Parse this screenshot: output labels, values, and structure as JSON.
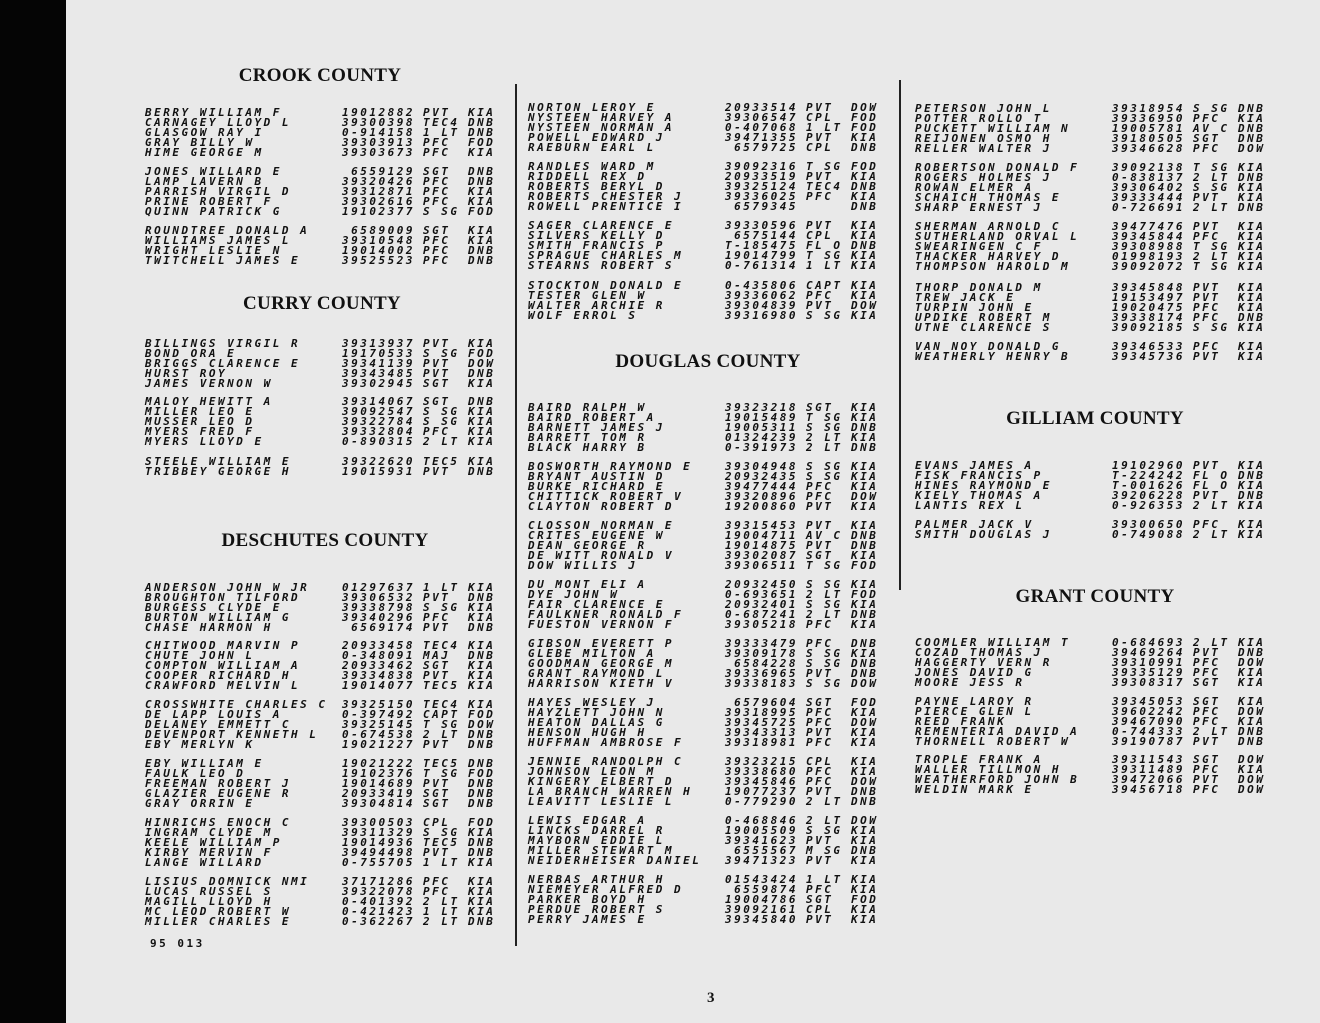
{
  "counties": {
    "crook": "CROOK COUNTY",
    "curry": "CURRY COUNTY",
    "deschutes": "DESCHUTES COUNTY",
    "douglas": "DOUGLAS COUNTY",
    "gilliam": "GILLIAM COUNTY",
    "grant": "GRANT COUNTY"
  },
  "footer_code": "95 013",
  "page_number": "3",
  "groups": [
    {
      "column": 1,
      "rows": [
        [
          "BERRY WILLIAM F",
          "19012882",
          "PVT",
          "KIA"
        ],
        [
          "CARNAGEY LLOYD L",
          "39300398",
          "TEC4",
          "DNB"
        ],
        [
          "GLASGOW RAY I",
          "0-914158",
          "1 LT",
          "DNB"
        ],
        [
          "GRAY BILLY W",
          "39303913",
          "PFC",
          "FOD"
        ],
        [
          "HIME GEORGE M",
          "39303673",
          "PFC",
          "KIA"
        ]
      ]
    },
    {
      "column": 1,
      "rows": [
        [
          "JONES WILLARD E",
          "6559129",
          "SGT",
          "DNB"
        ],
        [
          "LAMP LAVERN B",
          "39320426",
          "PFC",
          "DNB"
        ],
        [
          "PARRISH VIRGIL D",
          "39312871",
          "PFC",
          "KIA"
        ],
        [
          "PRINE ROBERT F",
          "39302616",
          "PFC",
          "KIA"
        ],
        [
          "QUINN PATRICK G",
          "19102377",
          "S SG",
          "FOD"
        ]
      ]
    },
    {
      "column": 1,
      "rows": [
        [
          "ROUNDTREE DONALD A",
          "6589009",
          "SGT",
          "KIA"
        ],
        [
          "WILLIAMS JAMES L",
          "39310548",
          "PFC",
          "KIA"
        ],
        [
          "WRIGHT LESLIE N",
          "19014002",
          "PFC",
          "DNB"
        ],
        [
          "TWITCHELL JAMES E",
          "39525523",
          "PFC",
          "DNB"
        ]
      ]
    },
    {
      "column": 1,
      "rows": [
        [
          "BILLINGS VIRGIL R",
          "39313937",
          "PVT",
          "KIA"
        ],
        [
          "BOND ORA E",
          "19170533",
          "S SG",
          "FOD"
        ],
        [
          "BRIGGS CLARENCE E",
          "39341139",
          "PVT",
          "DOW"
        ],
        [
          "HURST ROY",
          "39343485",
          "PVT",
          "DNB"
        ],
        [
          "JAMES VERNON W",
          "39302945",
          "SGT",
          "KIA"
        ]
      ]
    },
    {
      "column": 1,
      "rows": [
        [
          "MALOY HEWITT A",
          "39314067",
          "SGT",
          "DNB"
        ],
        [
          "MILLER LEO E",
          "39092547",
          "S SG",
          "KIA"
        ],
        [
          "MUSSER LEO D",
          "39322784",
          "S SG",
          "KIA"
        ],
        [
          "MYERS FRED F",
          "39332804",
          "PFC",
          "KIA"
        ],
        [
          "MYERS LLOYD E",
          "0-890315",
          "2 LT",
          "KIA"
        ]
      ]
    },
    {
      "column": 1,
      "rows": [
        [
          "STEELE WILLIAM E",
          "39322620",
          "TEC5",
          "KIA"
        ],
        [
          "TRIBBEY GEORGE H",
          "19015931",
          "PVT",
          "DNB"
        ]
      ]
    },
    {
      "column": 1,
      "rows": [
        [
          "ANDERSON JOHN W JR",
          "01297637",
          "1 LT",
          "KIA"
        ],
        [
          "BROUGHTON TILFORD",
          "39306532",
          "PVT",
          "DNB"
        ],
        [
          "BURGESS CLYDE E",
          "39338798",
          "S SG",
          "KIA"
        ],
        [
          "BURTON WILLIAM G",
          "39340296",
          "PFC",
          "KIA"
        ],
        [
          "CHASE HARMON H",
          "6569174",
          "PVT",
          "DNB"
        ]
      ]
    },
    {
      "column": 1,
      "rows": [
        [
          "CHITWOOD MARVIN P",
          "20933458",
          "TEC4",
          "KIA"
        ],
        [
          "CHUTE JOHN L",
          "0-348091",
          "MAJ",
          "DNB"
        ],
        [
          "COMPTON WILLIAM A",
          "20933462",
          "SGT",
          "KIA"
        ],
        [
          "COOPER RICHARD H",
          "39334838",
          "PVT",
          "KIA"
        ],
        [
          "CRAWFORD MELVIN L",
          "19014077",
          "TEC5",
          "KIA"
        ]
      ]
    },
    {
      "column": 1,
      "rows": [
        [
          "CROSSWHITE CHARLES C",
          "39325150",
          "TEC4",
          "KIA"
        ],
        [
          "DE LAPP LOUIS A",
          "0-397492",
          "CAPT",
          "FOD"
        ],
        [
          "DELANEY EMMETT C",
          "39325145",
          "T SG",
          "DOW"
        ],
        [
          "DEVENPORT KENNETH L",
          "0-674538",
          "2 LT",
          "DNB"
        ],
        [
          "EBY MERLYN K",
          "19021227",
          "PVT",
          "DNB"
        ]
      ]
    },
    {
      "column": 1,
      "rows": [
        [
          "EBY WILLIAM E",
          "19021222",
          "TEC5",
          "DNB"
        ],
        [
          "FAULK LEO D",
          "19102376",
          "T SG",
          "FOD"
        ],
        [
          "FREEMAN ROBERT J",
          "19014689",
          "PVT",
          "DNB"
        ],
        [
          "GLAZIER EUGENE R",
          "20933419",
          "SGT",
          "DNB"
        ],
        [
          "GRAY ORRIN E",
          "39304814",
          "SGT",
          "DNB"
        ]
      ]
    },
    {
      "column": 1,
      "rows": [
        [
          "HINRICHS ENOCH C",
          "39300503",
          "CPL",
          "FOD"
        ],
        [
          "INGRAM CLYDE M",
          "39311329",
          "S SG",
          "KIA"
        ],
        [
          "KEELE WILLIAM P",
          "19014936",
          "TEC5",
          "DNB"
        ],
        [
          "KIRBY MERVIN F",
          "39494498",
          "PVT",
          "DNB"
        ],
        [
          "LANGE WILLARD",
          "0-755705",
          "1 LT",
          "KIA"
        ]
      ]
    },
    {
      "column": 1,
      "rows": [
        [
          "LISIUS DOMNICK NMI",
          "37171286",
          "PFC",
          "KIA"
        ],
        [
          "LUCAS RUSSEL S",
          "39322078",
          "PFC",
          "KIA"
        ],
        [
          "MAGILL LLOYD H",
          "0-401392",
          "2 LT",
          "KIA"
        ],
        [
          "MC LEOD ROBERT W",
          "0-421423",
          "1 LT",
          "KIA"
        ],
        [
          "MILLER CHARLES E",
          "0-362267",
          "2 LT",
          "DNB"
        ]
      ]
    },
    {
      "column": 2,
      "rows": [
        [
          "NORTON LEROY E",
          "20933514",
          "PVT",
          "DOW"
        ],
        [
          "NYSTEEN HARVEY A",
          "39306547",
          "CPL",
          "FOD"
        ],
        [
          "NYSTEEN NORMAN A",
          "0-407068",
          "1 LT",
          "FOD"
        ],
        [
          "POWELL EDWARD J",
          "39471355",
          "PVT",
          "KIA"
        ],
        [
          "RAEBURN EARL L",
          "6579725",
          "CPL",
          "DNB"
        ]
      ]
    },
    {
      "column": 2,
      "rows": [
        [
          "RANDLES WARD M",
          "39092316",
          "T SG",
          "FOD"
        ],
        [
          "RIDDELL REX D",
          "20933519",
          "PVT",
          "KIA"
        ],
        [
          "ROBERTS BERYL D",
          "39325124",
          "TEC4",
          "DNB"
        ],
        [
          "ROBERTS CHESTER J",
          "39336025",
          "PFC",
          "KIA"
        ],
        [
          "ROWELL PRENTICE I",
          "6579345",
          "",
          "DNB"
        ]
      ]
    },
    {
      "column": 2,
      "rows": [
        [
          "SAGER CLARENCE E",
          "39330596",
          "PVT",
          "KIA"
        ],
        [
          "SILVERS KELLY D",
          "6575144",
          "CPL",
          "KIA"
        ],
        [
          "SMITH FRANCIS P",
          "T-185475",
          "FL O",
          "DNB"
        ],
        [
          "SPRAGUE CHARLES M",
          "19014799",
          "T SG",
          "KIA"
        ],
        [
          "STEARNS ROBERT S",
          "0-761314",
          "1 LT",
          "KIA"
        ]
      ]
    },
    {
      "column": 2,
      "rows": [
        [
          "STOCKTON DONALD E",
          "0-435806",
          "CAPT",
          "KIA"
        ],
        [
          "TESTER GLEN W",
          "39336062",
          "PFC",
          "KIA"
        ],
        [
          "WALTER ARCHIE R",
          "39304839",
          "PVT",
          "DOW"
        ],
        [
          "WOLF ERROL S",
          "39316980",
          "S SG",
          "KIA"
        ]
      ]
    },
    {
      "column": 2,
      "rows": [
        [
          "BAIRD RALPH W",
          "39323218",
          "SGT",
          "KIA"
        ],
        [
          "BAIRD ROBERT A",
          "19015489",
          "T SG",
          "KIA"
        ],
        [
          "BARNETT JAMES J",
          "19005311",
          "S SG",
          "DNB"
        ],
        [
          "BARRETT TOM R",
          "01324239",
          "2 LT",
          "KIA"
        ],
        [
          "BLACK HARRY B",
          "0-391973",
          "2 LT",
          "DNB"
        ]
      ]
    },
    {
      "column": 2,
      "rows": [
        [
          "BOSWORTH RAYMOND E",
          "39304948",
          "S SG",
          "KIA"
        ],
        [
          "BRYANT AUSTIN D",
          "20932435",
          "S SG",
          "KIA"
        ],
        [
          "BURKE RICHARD E",
          "39477444",
          "PFC",
          "KIA"
        ],
        [
          "CHITTICK ROBERT V",
          "39320896",
          "PFC",
          "DOW"
        ],
        [
          "CLAYTON ROBERT D",
          "19200860",
          "PVT",
          "KIA"
        ]
      ]
    },
    {
      "column": 2,
      "rows": [
        [
          "CLOSSON NORMAN E",
          "39315453",
          "PVT",
          "KIA"
        ],
        [
          "CRITES EUGENE W",
          "19004711",
          "AV C",
          "DNB"
        ],
        [
          "DEAN GEORGE R",
          "19014875",
          "PVT",
          "DNB"
        ],
        [
          "DE WITT RONALD V",
          "39302087",
          "SGT",
          "KIA"
        ],
        [
          "DOW WILLIS J",
          "39306511",
          "T SG",
          "FOD"
        ]
      ]
    },
    {
      "column": 2,
      "rows": [
        [
          "DU MONT ELI A",
          "20932450",
          "S SG",
          "KIA"
        ],
        [
          "DYE JOHN W",
          "0-693651",
          "2 LT",
          "FOD"
        ],
        [
          "FAIR CLARENCE E",
          "20932401",
          "S SG",
          "KIA"
        ],
        [
          "FAULKNER RONALD F",
          "0-687241",
          "2 LT",
          "DNB"
        ],
        [
          "FUESTON VERNON F",
          "39305218",
          "PFC",
          "KIA"
        ]
      ]
    },
    {
      "column": 2,
      "rows": [
        [
          "GIBSON EVERETT P",
          "39333479",
          "PFC",
          "DNB"
        ],
        [
          "GLEBE MILTON A",
          "39309178",
          "S SG",
          "KIA"
        ],
        [
          "GOODMAN GEORGE M",
          "6584228",
          "S SG",
          "DNB"
        ],
        [
          "GRANT RAYMOND L",
          "39336965",
          "PVT",
          "DNB"
        ],
        [
          "HARRISON KIETH V",
          "39338183",
          "S SG",
          "DOW"
        ]
      ]
    },
    {
      "column": 2,
      "rows": [
        [
          "HAYES WESLEY J",
          "6579604",
          "SGT",
          "FOD"
        ],
        [
          "HAYZLETT JOHN N",
          "39318995",
          "PFC",
          "KIA"
        ],
        [
          "HEATON DALLAS G",
          "39345725",
          "PFC",
          "DOW"
        ],
        [
          "HENSON HUGH H",
          "39343313",
          "PVT",
          "KIA"
        ],
        [
          "HUFFMAN AMBROSE F",
          "39318981",
          "PFC",
          "KIA"
        ]
      ]
    },
    {
      "column": 2,
      "rows": [
        [
          "JENNIE RANDOLPH C",
          "39323215",
          "CPL",
          "KIA"
        ],
        [
          "JOHNSON LEON M",
          "39338680",
          "PFC",
          "KIA"
        ],
        [
          "KINGERY ELBERT D",
          "39345846",
          "PFC",
          "DOW"
        ],
        [
          "LA BRANCH WARREN H",
          "19077237",
          "PVT",
          "DNB"
        ],
        [
          "LEAVITT LESLIE L",
          "0-779290",
          "2 LT",
          "DNB"
        ]
      ]
    },
    {
      "column": 2,
      "rows": [
        [
          "LEWIS EDGAR A",
          "0-468846",
          "2 LT",
          "DOW"
        ],
        [
          "LINCKS DARREL R",
          "19005509",
          "S SG",
          "KIA"
        ],
        [
          "MAYBORN EDDIE L",
          "39341623",
          "PVT",
          "KIA"
        ],
        [
          "MILLER STEWART M",
          "6555567",
          "M SG",
          "DNB"
        ],
        [
          "NEIDERHEISER DANIEL",
          "39471323",
          "PVT",
          "KIA"
        ]
      ]
    },
    {
      "column": 2,
      "rows": [
        [
          "NERBAS ARTHUR H",
          "01543424",
          "1 LT",
          "KIA"
        ],
        [
          "NIEMEYER ALFRED D",
          "6559874",
          "PFC",
          "KIA"
        ],
        [
          "PARKER BOYD H",
          "19004786",
          "SGT",
          "FOD"
        ],
        [
          "PERDUE ROBERT S",
          "39092161",
          "CPL",
          "KIA"
        ],
        [
          "PERRY JAMES E",
          "39345840",
          "PVT",
          "KIA"
        ]
      ]
    },
    {
      "column": 3,
      "rows": [
        [
          "PETERSON JOHN L",
          "39318954",
          "S SG",
          "DNB"
        ],
        [
          "POTTER ROLLO T",
          "39336950",
          "PFC",
          "KIA"
        ],
        [
          "PUCKETT WILLIAM N",
          "19005781",
          "AV C",
          "DNB"
        ],
        [
          "REIJONEN OSMO H",
          "39180505",
          "SGT",
          "DNB"
        ],
        [
          "RELLER WALTER J",
          "39346628",
          "PFC",
          "DOW"
        ]
      ]
    },
    {
      "column": 3,
      "rows": [
        [
          "ROBERTSON DONALD F",
          "39092138",
          "T SG",
          "KIA"
        ],
        [
          "ROGERS HOLMES J",
          "0-838137",
          "2 LT",
          "DNB"
        ],
        [
          "ROWAN ELMER A",
          "39306402",
          "S SG",
          "KIA"
        ],
        [
          "SCHAICH THOMAS E",
          "39333444",
          "PVT",
          "KIA"
        ],
        [
          "SHARP ERNEST J",
          "0-726691",
          "2 LT",
          "DNB"
        ]
      ]
    },
    {
      "column": 3,
      "rows": [
        [
          "SHERMAN ARNOLD C",
          "39477476",
          "PVT",
          "KIA"
        ],
        [
          "SUTHERLAND ORVAL L",
          "39345844",
          "PFC",
          "KIA"
        ],
        [
          "SWEARINGEN C F",
          "39308988",
          "T SG",
          "KIA"
        ],
        [
          "THACKER HARVEY D",
          "01998193",
          "2 LT",
          "KIA"
        ],
        [
          "THOMPSON HAROLD M",
          "39092072",
          "T SG",
          "KIA"
        ]
      ]
    },
    {
      "column": 3,
      "rows": [
        [
          "THORP DONALD M",
          "39345848",
          "PVT",
          "KIA"
        ],
        [
          "TREW JACK E",
          "19153497",
          "PVT",
          "KIA"
        ],
        [
          "TURPIN JOHN E",
          "19020475",
          "PFC",
          "KIA"
        ],
        [
          "UPDIKE ROBERT M",
          "39338174",
          "PFC",
          "DNB"
        ],
        [
          "UTNE CLARENCE S",
          "39092185",
          "S SG",
          "KIA"
        ]
      ]
    },
    {
      "column": 3,
      "rows": [
        [
          "VAN NOY DONALD G",
          "39346533",
          "PFC",
          "KIA"
        ],
        [
          "WEATHERLY HENRY B",
          "39345736",
          "PVT",
          "KIA"
        ]
      ]
    },
    {
      "column": 3,
      "rows": [
        [
          "EVANS JAMES A",
          "19102960",
          "PVT",
          "KIA"
        ],
        [
          "FISK FRANCIS P",
          "T-224242",
          "FL O",
          "DNB"
        ],
        [
          "HINES RAYMOND E",
          "T-001626",
          "FL O",
          "KIA"
        ],
        [
          "KIELY THOMAS A",
          "39206228",
          "PVT",
          "DNB"
        ],
        [
          "LANTIS REX L",
          "0-926353",
          "2 LT",
          "KIA"
        ]
      ]
    },
    {
      "column": 3,
      "rows": [
        [
          "PALMER JACK V",
          "39300650",
          "PFC",
          "KIA"
        ],
        [
          "SMITH DOUGLAS J",
          "0-749088",
          "2 LT",
          "KIA"
        ]
      ]
    },
    {
      "column": 3,
      "rows": [
        [
          "COOMLER WILLIAM T",
          "0-684693",
          "2 LT",
          "KIA"
        ],
        [
          "COZAD THOMAS J",
          "39469264",
          "PVT",
          "DNB"
        ],
        [
          "HAGGERTY VERN R",
          "39310991",
          "PFC",
          "DOW"
        ],
        [
          "JONES DAVID G",
          "39335129",
          "PFC",
          "KIA"
        ],
        [
          "MOORE JESS R",
          "39308317",
          "SGT",
          "KIA"
        ]
      ]
    },
    {
      "column": 3,
      "rows": [
        [
          "PAYNE LAROY R",
          "39345053",
          "SGT",
          "KIA"
        ],
        [
          "PIERCE GLEN L",
          "39602242",
          "PFC",
          "DOW"
        ],
        [
          "REED FRANK",
          "39467090",
          "PFC",
          "KIA"
        ],
        [
          "REMENTERIA DAVID A",
          "0-744333",
          "2 LT",
          "DNB"
        ],
        [
          "THORNELL ROBERT W",
          "39190787",
          "PVT",
          "DNB"
        ]
      ]
    },
    {
      "column": 3,
      "rows": [
        [
          "TROPLE FRANK A",
          "39311543",
          "SGT",
          "DOW"
        ],
        [
          "WALLER TILLMON H",
          "39311489",
          "PFC",
          "KIA"
        ],
        [
          "WEATHERFORD JOHN B",
          "39472066",
          "PVT",
          "DOW"
        ],
        [
          "WELDIN MARK E",
          "39456718",
          "PFC",
          "DOW"
        ]
      ]
    }
  ]
}
